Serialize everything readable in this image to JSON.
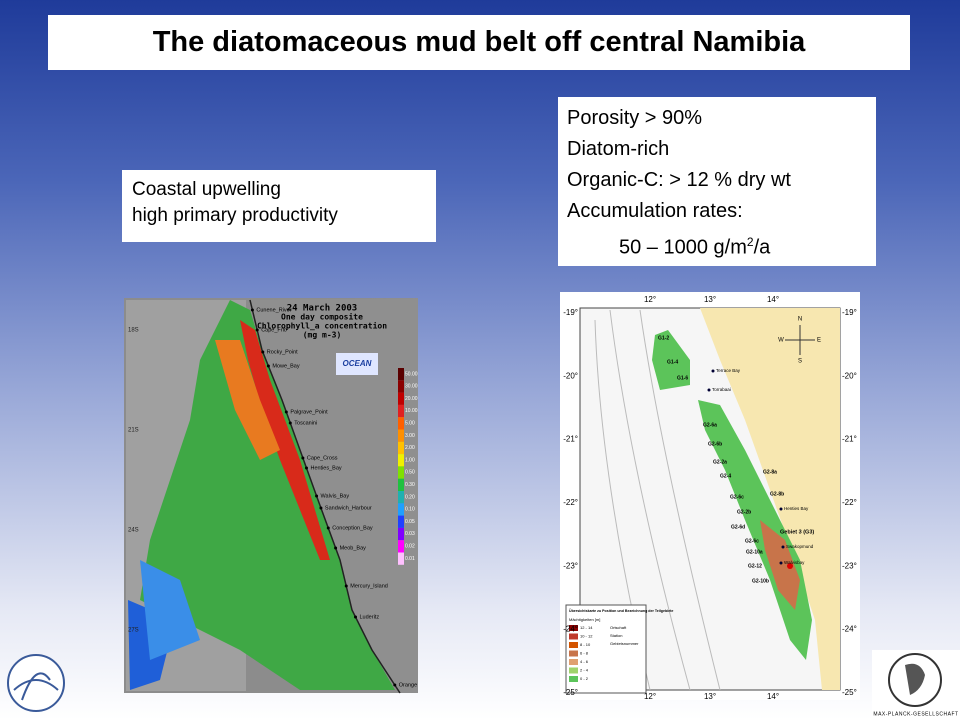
{
  "title": "The diatomaceous mud belt off central Namibia",
  "upwelling_box": {
    "lines": [
      "Coastal upwelling",
      "high primary productivity"
    ]
  },
  "properties_box": {
    "lines": [
      "Porosity > 90%",
      "Diatom-rich",
      "Organic-C: > 12 % dry wt",
      "Accumulation rates:"
    ],
    "rate": "50 – 1000 g/m",
    "rate_sup": "2",
    "rate_end": "/a"
  },
  "chlorophyll_map": {
    "heading": [
      "24 March 2003",
      "One day composite",
      "Chlorophyll_a concentration",
      "(mg m-3)"
    ],
    "logo": "OCEAN",
    "latitudes": [
      "18S",
      "21S",
      "24S",
      "27S"
    ],
    "places": [
      "Cunene_River",
      "Cape_Frio",
      "Rocky_Point",
      "Mowe_Bay",
      "Palgrave_Point",
      "Toscanini",
      "Cape_Cross",
      "Henties_Bay",
      "Walvis_Bay",
      "Sandwich_Harbour",
      "Conception_Bay",
      "Meob_Bay",
      "Mercury_Island",
      "Luderitz",
      "Orange"
    ],
    "scale": [
      "50.00",
      "30.00",
      "20.00",
      "10.00",
      "5.00",
      "3.00",
      "2.00",
      "1.00",
      "0.50",
      "0.30",
      "0.20",
      "0.10",
      "0.05",
      "0.03",
      "0.02",
      "0.01"
    ]
  },
  "mud_map": {
    "longitudes": [
      "12°",
      "13°",
      "14°"
    ],
    "latitudes": [
      "-19°",
      "-20°",
      "-21°",
      "-22°",
      "-23°",
      "-24°",
      "-25°"
    ],
    "compass": [
      "N",
      "E",
      "S",
      "W"
    ],
    "zones": [
      "G1-2",
      "G1-4",
      "G1-6",
      "G2-6a",
      "G2-6b",
      "G2-2a",
      "G2-4",
      "G2-8a",
      "G2-6c",
      "G2-8b",
      "G2-2b",
      "G2-6d",
      "G2-6c",
      "G2-10a",
      "G2-12",
      "G2-10b"
    ],
    "towns": [
      "Terrace Bay",
      "Torrabaai",
      "Henties Bay",
      "Swakopmund",
      "Walvisbay"
    ],
    "area": "Gebiet 3 (G3)",
    "legend": {
      "title": "Übersichtskarte zu Position und Bezeichnung der Teilgebiete",
      "subtitle": "Mächtigkeiten [m]",
      "classes": [
        "12 - 14",
        "10 - 12",
        "8 - 10",
        "6 - 8",
        "4 - 6",
        "2 - 4",
        "0 - 2"
      ],
      "symbols": [
        "Ortschaft",
        "Station",
        "Gebietsnummer"
      ]
    }
  },
  "footer": {
    "society": "MAX-PLANCK-GESELLSCHAFT"
  }
}
